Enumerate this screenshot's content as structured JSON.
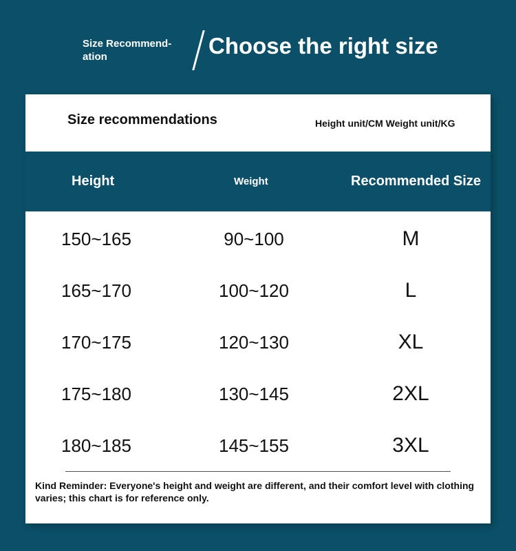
{
  "header": {
    "subtitle": "Size Recommend-ation",
    "title": "Choose the right size"
  },
  "card": {
    "title": "Size recommendations",
    "units": "Height unit/CM Weight unit/KG",
    "columns": [
      "Height",
      "Weight",
      "Recommended Size"
    ],
    "rows": [
      [
        "150~165",
        "90~100",
        "M"
      ],
      [
        "165~170",
        "100~120",
        "L"
      ],
      [
        "170~175",
        "120~130",
        "XL"
      ],
      [
        "175~180",
        "130~145",
        "2XL"
      ],
      [
        "180~185",
        "145~155",
        "3XL"
      ]
    ],
    "note": "Kind Reminder: Everyone's height and weight are different, and their comfort level with clothing varies; this chart is for reference only."
  },
  "colors": {
    "background": "#0b5068",
    "header_row": "#0b5068",
    "card": "#ffffff"
  }
}
